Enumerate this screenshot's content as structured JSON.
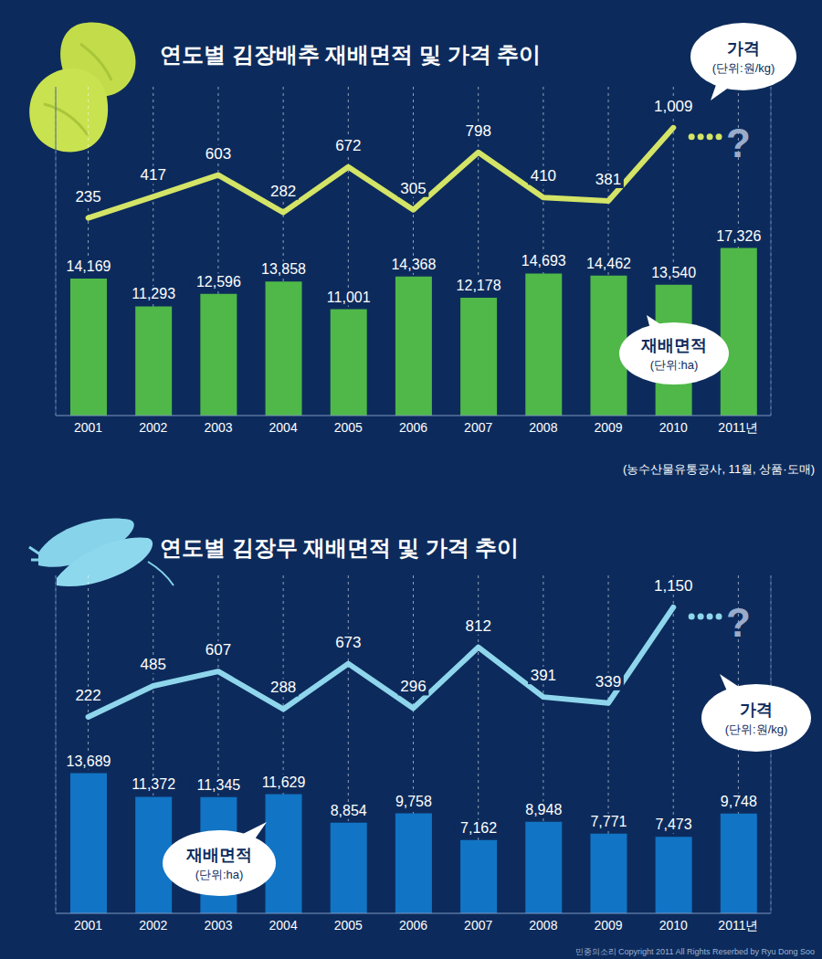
{
  "chart_data": [
    {
      "type": "combo",
      "title": "연도별 김장배추 재배면적 및 가격 추이",
      "categories": [
        "2001",
        "2002",
        "2003",
        "2004",
        "2005",
        "2006",
        "2007",
        "2008",
        "2009",
        "2010",
        "2011년"
      ],
      "series": [
        {
          "name": "재배면적",
          "unit": "(단위:ha)",
          "type": "bar",
          "color": "#4fb848",
          "values": [
            14169,
            11293,
            12596,
            13858,
            11001,
            14368,
            12178,
            14693,
            14462,
            13540,
            17326
          ],
          "value_labels": [
            "14,169",
            "11,293",
            "12,596",
            "13,858",
            "11,001",
            "14,368",
            "12,178",
            "14,693",
            "14,462",
            "13,540",
            "17,326"
          ]
        },
        {
          "name": "가격",
          "unit": "(단위:원/kg)",
          "type": "line",
          "axis": "y2",
          "color": "#d4e466",
          "values": [
            235,
            417,
            603,
            282,
            672,
            305,
            798,
            410,
            381,
            1009,
            null
          ],
          "value_labels": [
            "235",
            "417",
            "603",
            "282",
            "672",
            "305",
            "798",
            "410",
            "381",
            "1,009",
            null
          ]
        }
      ],
      "ylim": [
        0,
        34000
      ],
      "y2lim": [
        -1460,
        1360
      ],
      "tick_labels": "x",
      "grid": true,
      "data_labels": true,
      "annotations": [
        "?"
      ],
      "source": "(농수산물유통공사, 11월, 상품·도매)"
    },
    {
      "type": "combo",
      "title": "연도별 김장무 재배면적 및 가격 추이",
      "categories": [
        "2001",
        "2002",
        "2003",
        "2004",
        "2005",
        "2006",
        "2007",
        "2008",
        "2009",
        "2010",
        "2011년"
      ],
      "series": [
        {
          "name": "재배면적",
          "unit": "(단위:ha)",
          "type": "bar",
          "color": "#1274c4",
          "values": [
            13689,
            11372,
            11345,
            11629,
            8854,
            9758,
            7162,
            8948,
            7771,
            7473,
            9748
          ],
          "value_labels": [
            "13,689",
            "11,372",
            "11,345",
            "11,629",
            "8,854",
            "9,758",
            "7,162",
            "8,948",
            "7,771",
            "7,473",
            "9,748"
          ]
        },
        {
          "name": "가격",
          "unit": "(단위:원/kg)",
          "type": "line",
          "axis": "y2",
          "color": "#8fd6ec",
          "values": [
            222,
            485,
            607,
            288,
            673,
            296,
            812,
            391,
            339,
            1150,
            null
          ],
          "value_labels": [
            "222",
            "485",
            "607",
            "288",
            "673",
            "296",
            "812",
            "391",
            "339",
            "1,150",
            null
          ]
        }
      ],
      "ylim": [
        0,
        33000
      ],
      "y2lim": [
        -1440,
        1420
      ],
      "tick_labels": "x",
      "grid": true,
      "data_labels": true,
      "annotations": [
        "?"
      ],
      "credit": "민중의소리 Copyright 2011 All Rights Reserbed by Ryu Dong Soo"
    }
  ]
}
